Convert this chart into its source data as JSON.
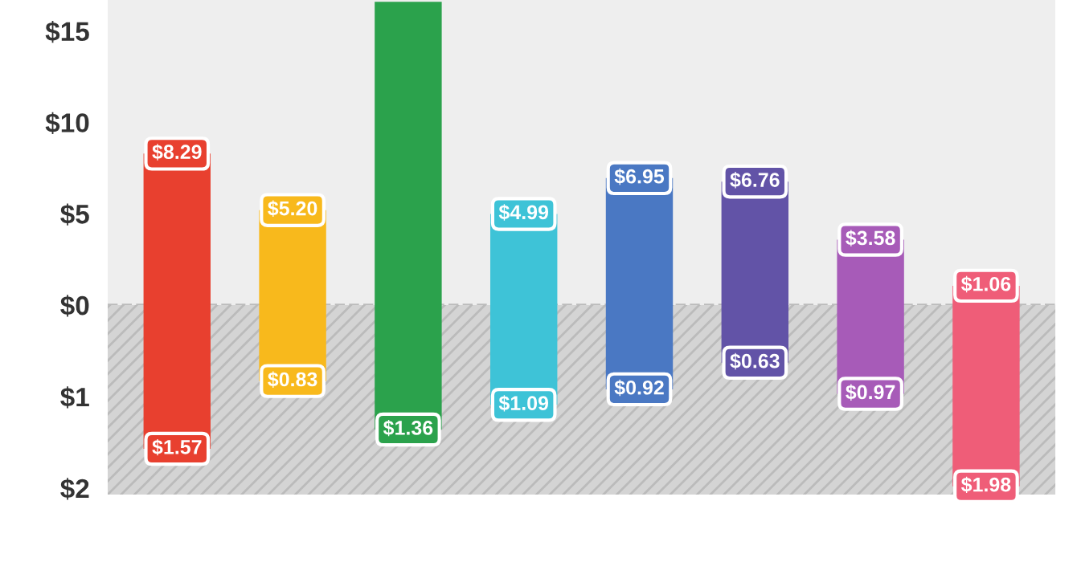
{
  "chart_data": [
    {
      "type": "bar",
      "categories": [
        null,
        null,
        null,
        null,
        null,
        null,
        null,
        null
      ],
      "series": [
        {
          "values": [
            8.29,
            5.2,
            16.6,
            4.99,
            6.95,
            6.76,
            3.58,
            1.06
          ],
          "colors": [
            "#e8402f",
            "#f8b91c",
            "#2ba24c",
            "#3ec3d7",
            "#4a78c3",
            "#6253a7",
            "#a75bb8",
            "#ef5d78"
          ],
          "value_labels": [
            "$8.29",
            "$5.20",
            null,
            "$4.99",
            "$6.95",
            "$6.76",
            "$3.58",
            "$1.06"
          ]
        }
      ],
      "ylim": [
        0,
        16.7
      ],
      "yticks": [
        {
          "value": 0,
          "label": "$0"
        },
        {
          "value": 5,
          "label": "$5"
        },
        {
          "value": 10,
          "label": "$10"
        },
        {
          "value": 15,
          "label": "$15"
        }
      ],
      "bands": [
        {
          "axis": "y",
          "from": 0,
          "to": 16.7,
          "color": "#eeeeee"
        }
      ],
      "ref_lines": [
        {
          "axis": "y",
          "value": 0,
          "color": "#bbbbbb",
          "line_style": "dashed"
        }
      ]
    },
    {
      "type": "bar",
      "categories": [
        null,
        null,
        null,
        null,
        null,
        null,
        null,
        null
      ],
      "series": [
        {
          "values": [
            1.57,
            0.83,
            1.36,
            1.09,
            0.92,
            0.63,
            0.97,
            1.98
          ],
          "colors": [
            "#e8402f",
            "#f8b91c",
            "#2ba24c",
            "#3ec3d7",
            "#4a78c3",
            "#6253a7",
            "#a75bb8",
            "#ef5d78"
          ],
          "value_labels": [
            "$1.57",
            "$0.83",
            "$1.36",
            "$1.09",
            "$0.92",
            "$0.63",
            "$0.97",
            "$1.98"
          ]
        }
      ],
      "ylim": [
        2.07,
        0
      ],
      "yticks": [
        {
          "value": 1,
          "label": "$1"
        },
        {
          "value": 2,
          "label": "$2"
        }
      ],
      "bands": [
        {
          "axis": "y",
          "from": 0,
          "to": 2.07,
          "color": "#d4d4d4"
        }
      ]
    }
  ]
}
